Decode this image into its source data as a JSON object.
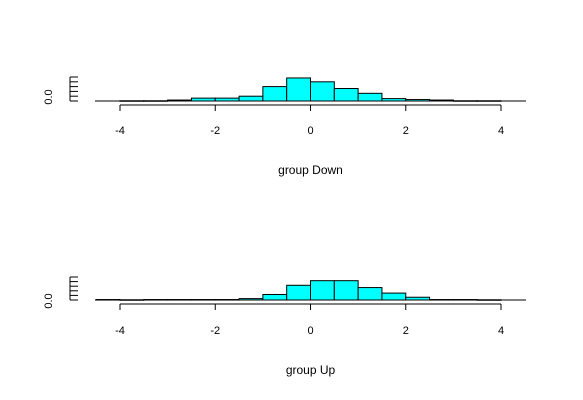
{
  "chart_data": [
    {
      "type": "bar",
      "subtype": "histogram",
      "title": "",
      "xlabel": "group Down",
      "ylabel": "",
      "xlim": [
        -4.5,
        4.5
      ],
      "ylim": [
        0,
        0.5
      ],
      "x_ticks": [
        "-4",
        "-2",
        "0",
        "2",
        "4"
      ],
      "x_tick_values": [
        -4,
        -2,
        0,
        2,
        4
      ],
      "y_ticks": [
        "0.0"
      ],
      "y_tick_values": [
        0
      ],
      "y_minor_ticks": [
        0,
        0.1,
        0.2,
        0.3,
        0.4,
        0.5
      ],
      "bar_color": "#00ffff",
      "bin_edges": [
        -4,
        -3.5,
        -3,
        -2.5,
        -2,
        -1.5,
        -1,
        -0.5,
        0,
        0.5,
        1,
        1.5,
        2,
        2.5,
        3,
        3.5,
        4
      ],
      "values": [
        0.005,
        0.005,
        0.02,
        0.06,
        0.06,
        0.1,
        0.3,
        0.48,
        0.4,
        0.26,
        0.16,
        0.05,
        0.03,
        0.02,
        0.005,
        0.005
      ]
    },
    {
      "type": "bar",
      "subtype": "histogram",
      "title": "",
      "xlabel": "group Up",
      "ylabel": "",
      "xlim": [
        -4.5,
        4.5
      ],
      "ylim": [
        0,
        0.5
      ],
      "x_ticks": [
        "-4",
        "-2",
        "0",
        "2",
        "4"
      ],
      "x_tick_values": [
        -4,
        -2,
        0,
        2,
        4
      ],
      "y_ticks": [
        "0.0"
      ],
      "y_tick_values": [
        0
      ],
      "y_minor_ticks": [
        0,
        0.1,
        0.2,
        0.3,
        0.4,
        0.5
      ],
      "bar_color": "#00ffff",
      "bin_edges": [
        -4.5,
        -4,
        -3.5,
        -3,
        -2.5,
        -2,
        -1.5,
        -1,
        -0.5,
        0,
        0.5,
        1,
        1.5,
        2,
        2.5,
        3,
        3.5,
        4
      ],
      "values": [
        0.01,
        0.005,
        0.01,
        0.01,
        0.01,
        0.01,
        0.03,
        0.12,
        0.32,
        0.42,
        0.42,
        0.27,
        0.15,
        0.06,
        0.01,
        0.01,
        0.005
      ]
    }
  ]
}
